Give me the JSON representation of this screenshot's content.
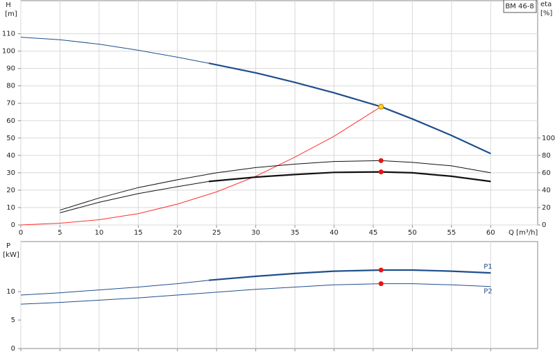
{
  "chart_data": [
    {
      "type": "line",
      "title": "BM 46-8",
      "ylabel": "H",
      "yunit": "[m]",
      "y2label": "eta",
      "y2unit": "[%]",
      "xlabel": "Q [m³/h]",
      "xlim": [
        0,
        66
      ],
      "xticks": [
        0,
        5,
        10,
        15,
        20,
        25,
        30,
        35,
        40,
        45,
        50,
        55,
        60
      ],
      "ylim": [
        0,
        129
      ],
      "yticks": [
        0,
        10,
        20,
        30,
        40,
        50,
        60,
        70,
        80,
        90,
        100,
        110
      ],
      "y2lim": [
        0,
        258
      ],
      "y2ticks": [
        0,
        20,
        40,
        60,
        80,
        100
      ],
      "grid": "xy",
      "xtick_labels": true,
      "series": [
        {
          "color": "#1f4e8c",
          "width": 1,
          "x": [
            0,
            5,
            10,
            15,
            20,
            24
          ],
          "values": [
            108,
            106.5,
            104,
            100.5,
            96.5,
            93
          ]
        },
        {
          "color": "#1f4e8c",
          "width": 2.2,
          "x": [
            24,
            30,
            35,
            40,
            46,
            50,
            55,
            60
          ],
          "values": [
            93,
            87.5,
            82,
            76,
            68,
            61,
            51.5,
            41
          ]
        },
        {
          "color": "#ff3030",
          "width": 1,
          "x": [
            0,
            5,
            10,
            15,
            20,
            25,
            30,
            35,
            40,
            46
          ],
          "values": [
            0,
            1,
            3,
            6.5,
            12,
            19,
            28,
            39,
            51,
            68
          ]
        },
        {
          "color": "#111111",
          "width": 1,
          "axis": "y2",
          "x": [
            5,
            10,
            15,
            20,
            25,
            30,
            35,
            40,
            46,
            50,
            55,
            60
          ],
          "values": [
            17,
            31,
            43,
            52,
            60,
            66,
            70,
            73,
            74,
            72,
            68,
            60
          ]
        },
        {
          "color": "#111111",
          "width": 1,
          "axis": "y2",
          "x": [
            5,
            10,
            15,
            20,
            24
          ],
          "values": [
            14,
            26,
            36,
            44,
            50
          ]
        },
        {
          "color": "#111111",
          "width": 2.2,
          "axis": "y2",
          "x": [
            24,
            30,
            35,
            40,
            46,
            50,
            55,
            60
          ],
          "values": [
            50,
            55,
            58,
            60.5,
            61,
            60,
            56,
            50
          ]
        },
        {
          "color": "#ffd21f",
          "marker": true,
          "x": [
            46
          ],
          "values": [
            68
          ]
        },
        {
          "color": "#ee1111",
          "marker": true,
          "axis": "y2",
          "x": [
            46
          ],
          "values": [
            74
          ]
        },
        {
          "color": "#ee1111",
          "marker": true,
          "axis": "y2",
          "x": [
            46
          ],
          "values": [
            61
          ]
        }
      ]
    },
    {
      "type": "line",
      "ylabel": "P",
      "yunit": "[kW]",
      "xlim": [
        0,
        66
      ],
      "xticks": [
        0,
        5,
        10,
        15,
        20,
        25,
        30,
        35,
        40,
        45,
        50,
        55,
        60
      ],
      "ylim": [
        0,
        18.8
      ],
      "yticks": [
        0,
        5,
        10
      ],
      "grid": "x",
      "xtick_labels": false,
      "series": [
        {
          "color": "#1f4e8c",
          "width": 1,
          "x": [
            0,
            5,
            10,
            15,
            20,
            24
          ],
          "values": [
            9.4,
            9.8,
            10.3,
            10.8,
            11.4,
            12
          ]
        },
        {
          "name": "P1",
          "color": "#1f4e8c",
          "width": 2.2,
          "x": [
            24,
            30,
            35,
            40,
            46,
            50,
            55,
            60
          ],
          "values": [
            12,
            12.7,
            13.2,
            13.6,
            13.8,
            13.8,
            13.6,
            13.3
          ]
        },
        {
          "name": "P2",
          "color": "#1f4e8c",
          "width": 1,
          "x": [
            0,
            5,
            10,
            15,
            20,
            25,
            30,
            35,
            40,
            46,
            50,
            55,
            60
          ],
          "values": [
            7.8,
            8.1,
            8.5,
            8.9,
            9.4,
            9.9,
            10.4,
            10.8,
            11.2,
            11.4,
            11.4,
            11.2,
            10.9
          ]
        },
        {
          "color": "#ee1111",
          "marker": true,
          "x": [
            46
          ],
          "values": [
            13.8
          ]
        },
        {
          "color": "#ee1111",
          "marker": true,
          "x": [
            46
          ],
          "values": [
            11.4
          ]
        }
      ]
    }
  ]
}
